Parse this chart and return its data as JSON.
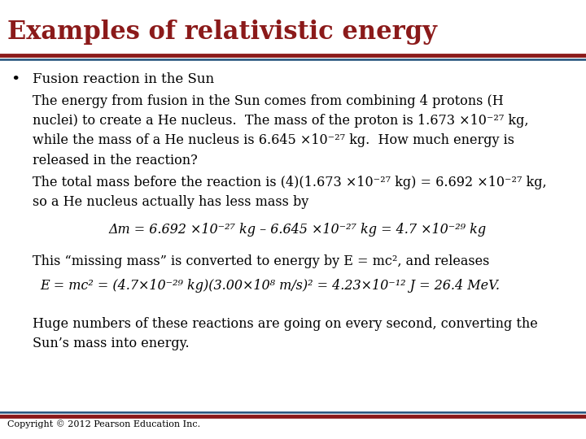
{
  "title": "Examples of relativistic energy",
  "title_color": "#8B1A1A",
  "title_fontsize": 22,
  "bg_color": "#FFFFFF",
  "line_color_top": "#8B1A1A",
  "line_color_bottom": "#1F4E79",
  "bullet": "Fusion reaction in the Sun",
  "para1": "The energy from fusion in the Sun comes from combining 4 protons (H\nnuclei) to create a He nucleus.  The mass of the proton is 1.673 ×10⁻²⁷ kg,\nwhile the mass of a He nucleus is 6.645 ×10⁻²⁷ kg.  How much energy is\nreleased in the reaction?",
  "para2": "The total mass before the reaction is (4)(1.673 ×10⁻²⁷ kg) = 6.692 ×10⁻²⁷ kg,\nso a He nucleus actually has less mass by",
  "eq1": "Δm = 6.692 ×10⁻²⁷ kg – 6.645 ×10⁻²⁷ kg = 4.7 ×10⁻²⁹ kg",
  "para3": "This “missing mass” is converted to energy by E = mc², and releases",
  "eq2": "E = mc² = (4.7×10⁻²⁹ kg)(3.00×10⁸ m/s)² = 4.23×10⁻¹² J = 26.4 MeV.",
  "para4": "Huge numbers of these reactions are going on every second, converting the\nSun’s mass into energy.",
  "copyright": "Copyright © 2012 Pearson Education Inc.",
  "body_fontsize": 11.5,
  "bullet_fontsize": 12,
  "eq_fontsize": 11.5,
  "copyright_fontsize": 8
}
